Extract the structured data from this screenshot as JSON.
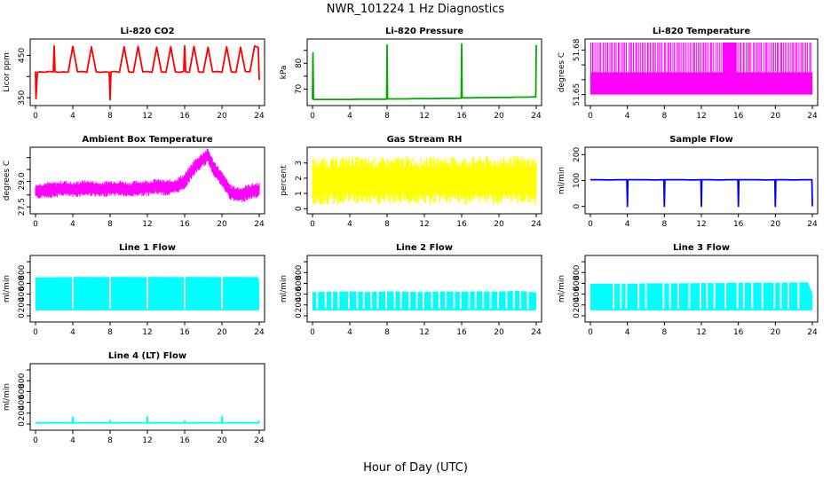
{
  "figure": {
    "title": "NWR_101224  1 Hz Diagnostics",
    "xlabel": "Hour of Day (UTC)"
  },
  "chart_data": [
    {
      "type": "line",
      "title": "Li-820 CO2",
      "ylabel": "Licor ppm",
      "color": "#ff0000",
      "xlim": [
        0,
        24
      ],
      "ylim": [
        340,
        480
      ],
      "xticks": [
        "0",
        "4",
        "8",
        "12",
        "16",
        "20",
        "24"
      ],
      "yticks": [
        {
          "v": 350,
          "t": "350"
        },
        {
          "v": 400,
          "t": ""
        },
        {
          "v": 450,
          "t": "450"
        }
      ],
      "x": [
        0,
        0.05,
        0.2,
        0.5,
        1,
        1.5,
        1.9,
        2,
        2.1,
        2.5,
        3,
        3.5,
        4,
        4.5,
        5,
        5.5,
        6,
        6.5,
        7,
        7.5,
        7.9,
        8,
        8.1,
        8.5,
        9,
        9.5,
        10,
        10.5,
        11,
        11.5,
        12,
        12.5,
        13,
        13.5,
        14,
        14.5,
        15,
        15.5,
        15.9,
        16,
        16.1,
        16.5,
        17,
        17.5,
        18,
        18.5,
        19,
        19.5,
        20,
        20.5,
        21,
        21.5,
        22,
        22.5,
        23,
        23.5,
        23.9,
        24
      ],
      "y": [
        412,
        348,
        410,
        411,
        410,
        412,
        411,
        472,
        411,
        410,
        411,
        410,
        471,
        411,
        412,
        410,
        470,
        411,
        410,
        411,
        410,
        345,
        411,
        412,
        410,
        470,
        411,
        410,
        471,
        411,
        412,
        410,
        469,
        411,
        410,
        470,
        411,
        410,
        412,
        472,
        411,
        410,
        471,
        411,
        410,
        469,
        411,
        412,
        410,
        470,
        411,
        410,
        469,
        412,
        411,
        472,
        468,
        392
      ]
    },
    {
      "type": "line",
      "title": "Li-820 Pressure",
      "ylabel": "kPa",
      "color": "#00aa00",
      "xlim": [
        0,
        24
      ],
      "ylim": [
        65,
        88
      ],
      "xticks": [
        "0",
        "4",
        "8",
        "12",
        "16",
        "20",
        "24"
      ],
      "yticks": [
        {
          "v": 70,
          "t": "70"
        },
        {
          "v": 75,
          "t": ""
        },
        {
          "v": 80,
          "t": "80"
        },
        {
          "v": 85,
          "t": ""
        }
      ],
      "x": [
        0,
        0.05,
        0.1,
        0.3,
        1,
        2,
        3,
        4,
        5,
        6,
        7,
        7.95,
        8,
        8.05,
        9,
        10,
        11,
        12,
        13,
        14,
        15,
        15.95,
        16,
        16.05,
        17,
        18,
        19,
        20,
        21,
        22,
        23,
        23.95,
        24
      ],
      "y": [
        66,
        84,
        66,
        66,
        66,
        66,
        66,
        66,
        66.1,
        66.1,
        66.1,
        66.1,
        87,
        66.2,
        66.2,
        66.2,
        66.3,
        66.3,
        66.3,
        66.4,
        66.4,
        66.5,
        87.5,
        66.6,
        66.6,
        66.7,
        66.7,
        66.8,
        66.8,
        66.9,
        66.9,
        67,
        87
      ]
    },
    {
      "type": "line",
      "title": "Li-820 Temperature",
      "ylabel": "degrees C",
      "color": "#ff00ff",
      "xlim": [
        0,
        24
      ],
      "ylim": [
        51.645,
        51.685
      ],
      "xticks": [
        "0",
        "4",
        "8",
        "12",
        "16",
        "20",
        "24"
      ],
      "yticks": [
        {
          "v": 51.65,
          "t": "51.65"
        },
        {
          "v": 51.66,
          "t": ""
        },
        {
          "v": 51.67,
          "t": ""
        },
        {
          "v": 51.68,
          "t": "51.68"
        }
      ],
      "x": [
        0,
        0.5,
        1,
        1.5,
        2,
        2.5,
        3,
        3.5,
        4,
        4.5,
        5,
        5.5,
        6,
        6.5,
        7,
        7.5,
        8,
        8.5,
        9,
        9.5,
        10,
        10.5,
        11,
        11.5,
        12,
        12.5,
        13,
        13.5,
        14,
        14.5,
        15,
        15.5,
        16,
        16.5,
        17,
        17.5,
        18,
        18.5,
        19,
        19.5,
        20,
        20.5,
        21,
        21.5,
        22,
        22.5,
        23,
        23.5,
        24
      ],
      "y": [
        51.665,
        51.685,
        51.685,
        51.685,
        51.685,
        51.665,
        51.685,
        51.685,
        51.685,
        51.665,
        51.685,
        51.685,
        51.665,
        51.685,
        51.685,
        51.685,
        51.665,
        51.685,
        51.685,
        51.685,
        51.665,
        51.685,
        51.685,
        51.685,
        51.665,
        51.685,
        51.685,
        51.685,
        51.665,
        51.685,
        51.685,
        51.685,
        51.685,
        51.685,
        51.685,
        51.685,
        51.685,
        51.685,
        51.685,
        51.685,
        51.665,
        51.685,
        51.685,
        51.685,
        51.685,
        51.685,
        51.685,
        51.685,
        51.685
      ],
      "band": [
        51.65,
        51.665
      ]
    },
    {
      "type": "line",
      "title": "Ambient Box Temperature",
      "ylabel": "degrees C",
      "color": "#ff00ff",
      "xlim": [
        0,
        24
      ],
      "ylim": [
        27.3,
        30.8
      ],
      "xticks": [
        "0",
        "4",
        "8",
        "12",
        "16",
        "20",
        "24"
      ],
      "yticks": [
        {
          "v": 27.5,
          "t": "27.5"
        },
        {
          "v": 28.2,
          "t": ""
        },
        {
          "v": 29.0,
          "t": "29.0"
        },
        {
          "v": 29.7,
          "t": ""
        },
        {
          "v": 30.4,
          "t": ""
        }
      ],
      "x": [
        0,
        1,
        2,
        3,
        4,
        5,
        6,
        7,
        8,
        9,
        10,
        11,
        12,
        13,
        14,
        15,
        16,
        17,
        18,
        18.5,
        19,
        20,
        21,
        22,
        23,
        24
      ],
      "y": [
        28.4,
        28.5,
        28.5,
        28.6,
        28.5,
        28.6,
        28.6,
        28.5,
        28.6,
        28.6,
        28.5,
        28.6,
        28.6,
        28.7,
        28.6,
        28.7,
        29.0,
        29.8,
        30.3,
        30.5,
        29.9,
        29.1,
        28.3,
        28.2,
        28.4,
        28.5
      ],
      "spread": 0.45
    },
    {
      "type": "line",
      "title": "Gas Stream RH",
      "ylabel": "percent",
      "color": "#ffff00",
      "xlim": [
        0,
        24
      ],
      "ylim": [
        -0.1,
        3.8
      ],
      "xticks": [
        "0",
        "4",
        "8",
        "12",
        "16",
        "20",
        "24"
      ],
      "yticks": [
        {
          "v": 0,
          "t": "0"
        },
        {
          "v": 1,
          "t": "1"
        },
        {
          "v": 2,
          "t": "2"
        },
        {
          "v": 3,
          "t": "3"
        }
      ],
      "x": [
        0,
        2,
        4,
        6,
        8,
        10,
        12,
        14,
        16,
        18,
        20,
        22,
        24
      ],
      "y": [
        1.8,
        1.8,
        1.9,
        1.8,
        1.8,
        1.9,
        1.8,
        1.9,
        1.8,
        1.9,
        1.8,
        1.9,
        1.8
      ],
      "spread": 1.5
    },
    {
      "type": "line",
      "title": "Sample Flow",
      "ylabel": "ml/min",
      "color": "#0000ff",
      "xlim": [
        0,
        24
      ],
      "ylim": [
        -15,
        215
      ],
      "xticks": [
        "0",
        "4",
        "8",
        "12",
        "16",
        "20",
        "24"
      ],
      "yticks": [
        {
          "v": 0,
          "t": "0"
        },
        {
          "v": 100,
          "t": "100"
        },
        {
          "v": 200,
          "t": "200"
        }
      ],
      "x": [
        0,
        1,
        2,
        3,
        3.95,
        4,
        4.05,
        5,
        6,
        7,
        7.95,
        8,
        8.05,
        9,
        10,
        11,
        11.95,
        12,
        12.05,
        13,
        14,
        15,
        15.95,
        16,
        16.05,
        17,
        18,
        19,
        19.95,
        20,
        20.05,
        21,
        22,
        23,
        23.95,
        24
      ],
      "y": [
        103,
        103,
        102,
        103,
        103,
        0,
        103,
        103,
        103,
        102,
        103,
        0,
        103,
        103,
        103,
        102,
        103,
        0,
        103,
        103,
        102,
        103,
        103,
        0,
        103,
        103,
        103,
        102,
        103,
        0,
        103,
        103,
        102,
        103,
        103,
        0
      ]
    },
    {
      "type": "line",
      "title": "Line 1 Flow",
      "ylabel": "ml/min",
      "color": "#00ffff",
      "xlim": [
        0,
        24
      ],
      "ylim": [
        -50,
        1050
      ],
      "xticks": [
        "0",
        "4",
        "8",
        "12",
        "16",
        "20",
        "24"
      ],
      "yticks": [
        {
          "v": 0,
          "t": "0"
        },
        {
          "v": 200,
          "t": "200"
        },
        {
          "v": 400,
          "t": "400"
        },
        {
          "v": 600,
          "t": "600"
        },
        {
          "v": 800,
          "t": "800"
        },
        {
          "v": 1000,
          "t": ""
        }
      ],
      "x": [
        0,
        3.9,
        4,
        7.9,
        8,
        11.9,
        12,
        15.9,
        16,
        19.9,
        20,
        23.9,
        24
      ],
      "y": [
        710,
        715,
        720,
        715,
        720,
        715,
        720,
        715,
        720,
        715,
        720,
        715,
        600
      ],
      "band_low": 100,
      "gaps": [
        4,
        8,
        12,
        16,
        20
      ]
    },
    {
      "type": "line",
      "title": "Line 2 Flow",
      "ylabel": "ml/min",
      "color": "#00ffff",
      "xlim": [
        0,
        24
      ],
      "ylim": [
        -50,
        1050
      ],
      "xticks": [
        "0",
        "4",
        "8",
        "12",
        "16",
        "20",
        "24"
      ],
      "yticks": [
        {
          "v": 0,
          "t": "0"
        },
        {
          "v": 200,
          "t": "200"
        },
        {
          "v": 400,
          "t": "400"
        },
        {
          "v": 600,
          "t": "600"
        },
        {
          "v": 800,
          "t": "800"
        },
        {
          "v": 1000,
          "t": ""
        }
      ],
      "x": [
        0,
        2,
        4,
        6,
        8,
        10,
        12,
        14,
        16,
        18,
        20,
        22,
        24
      ],
      "y": [
        440,
        445,
        450,
        440,
        450,
        445,
        440,
        450,
        445,
        450,
        445,
        460,
        430
      ],
      "band_low": 100,
      "gaps": [
        0.5,
        1.4,
        2.1,
        2.8,
        3.9,
        4.8,
        5.5,
        6.3,
        7.0,
        7.9,
        8.8,
        9.5,
        10.4,
        11.2,
        11.9,
        12.8,
        13.6,
        14.3,
        15.2,
        15.9,
        16.8,
        17.5,
        18.3,
        19.1,
        19.9,
        20.8,
        21.6,
        22.3,
        23.1
      ]
    },
    {
      "type": "line",
      "title": "Line 3 Flow",
      "ylabel": "ml/min",
      "color": "#00ffff",
      "xlim": [
        0,
        24
      ],
      "ylim": [
        -50,
        1050
      ],
      "xticks": [
        "0",
        "4",
        "8",
        "12",
        "16",
        "20",
        "24"
      ],
      "yticks": [
        {
          "v": 0,
          "t": "0"
        },
        {
          "v": 200,
          "t": "200"
        },
        {
          "v": 400,
          "t": "400"
        },
        {
          "v": 600,
          "t": "600"
        },
        {
          "v": 800,
          "t": "800"
        },
        {
          "v": 1000,
          "t": ""
        }
      ],
      "x": [
        0,
        2,
        4,
        6,
        8,
        10,
        12,
        14,
        16,
        18,
        20,
        22,
        23.5,
        24
      ],
      "y": [
        590,
        595,
        595,
        600,
        600,
        600,
        605,
        605,
        610,
        610,
        610,
        615,
        620,
        420
      ],
      "band_low": 100,
      "gaps": [
        2.5,
        3.3,
        3.9,
        5.2,
        6.0,
        7.9,
        8.6,
        9.5,
        10.7,
        11.9,
        12.6,
        13.4,
        14.6,
        15.9,
        16.6,
        17.5,
        18.6,
        19.9,
        20.6,
        21.4,
        22.5
      ]
    },
    {
      "type": "line",
      "title": "Line 4 (LT) Flow",
      "ylabel": "ml/min",
      "color": "#00ffff",
      "xlim": [
        0,
        24
      ],
      "ylim": [
        -50,
        1050
      ],
      "xticks": [
        "0",
        "4",
        "8",
        "12",
        "16",
        "20",
        "24"
      ],
      "yticks": [
        {
          "v": 0,
          "t": "0"
        },
        {
          "v": 200,
          "t": "200"
        },
        {
          "v": 400,
          "t": "400"
        },
        {
          "v": 600,
          "t": "600"
        },
        {
          "v": 800,
          "t": "800"
        },
        {
          "v": 1000,
          "t": ""
        }
      ],
      "x": [
        0,
        3.95,
        4,
        4.05,
        7.95,
        8,
        8.05,
        11.95,
        12,
        12.05,
        15.95,
        16,
        16.05,
        19.95,
        20,
        20.05,
        23.95,
        24
      ],
      "y": [
        20,
        20,
        130,
        20,
        20,
        60,
        20,
        20,
        130,
        20,
        20,
        60,
        20,
        20,
        140,
        20,
        20,
        60
      ]
    }
  ]
}
